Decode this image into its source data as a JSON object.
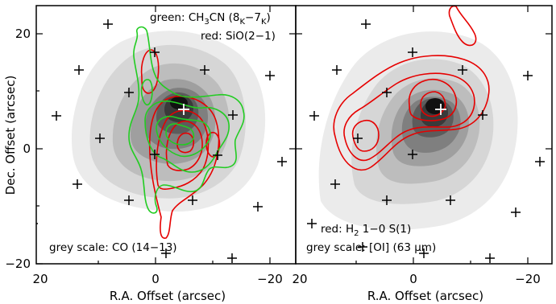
{
  "figure": {
    "y_axis_label": "Dec. Offset (arcsec)",
    "x_axis_label": "R.A. Offset (arcsec)",
    "y_ticks": [
      "20",
      "0",
      "−20"
    ],
    "x_ticks_left": [
      "20",
      "0",
      "−20"
    ],
    "x_ticks_right": [
      "20",
      "0",
      "−20"
    ]
  },
  "panel_left": {
    "legend_green_prefix": "green: CH",
    "legend_green_sub3": "3",
    "legend_green_mid": "CN (8",
    "legend_green_subK1": "K",
    "legend_green_dash": "−7",
    "legend_green_subK2": "K",
    "legend_green_end": ")",
    "legend_red": "red: SiO(2−1)",
    "grey_scale_label": "grey scale: CO (14−13)"
  },
  "panel_right": {
    "legend_red_prefix": "red: H",
    "legend_red_sub2": "2",
    "legend_red_end": " 1−0 S(1)",
    "grey_scale_label": "grey scale: [OI] (63 μm)"
  }
}
